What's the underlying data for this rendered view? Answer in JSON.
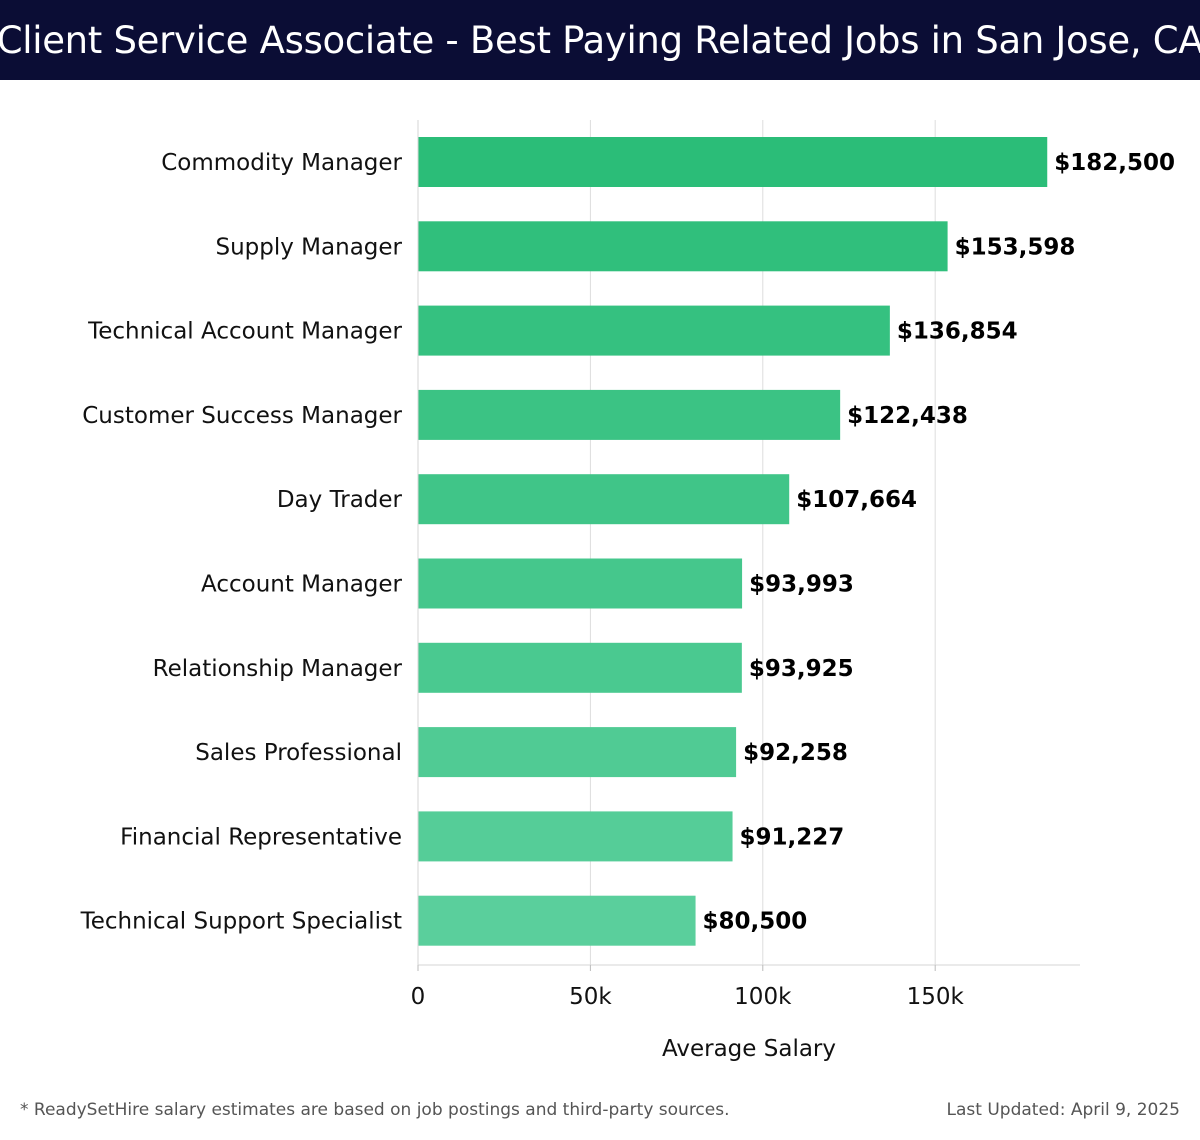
{
  "header": {
    "title": "Client Service Associate - Best Paying Related Jobs in San Jose, CA"
  },
  "chart_data": {
    "type": "bar",
    "orientation": "horizontal",
    "title": "Client Service Associate - Best Paying Related Jobs in San Jose, CA",
    "categories": [
      "Commodity Manager",
      "Supply Manager",
      "Technical Account Manager",
      "Customer Success Manager",
      "Day Trader",
      "Account Manager",
      "Relationship Manager",
      "Sales Professional",
      "Financial Representative",
      "Technical Support Specialist"
    ],
    "values": [
      182500,
      153598,
      136854,
      122438,
      107664,
      93993,
      93925,
      92258,
      91227,
      80500
    ],
    "value_labels": [
      "$182,500",
      "$153,598",
      "$136,854",
      "$122,438",
      "$107,664",
      "$93,993",
      "$93,925",
      "$92,258",
      "$91,227",
      "$80,500"
    ],
    "xlabel": "Average Salary",
    "ylabel": "",
    "xlim": [
      0,
      192000
    ],
    "xticks": [
      0,
      50000,
      100000,
      150000
    ],
    "xtick_labels": [
      "0",
      "50k",
      "100k",
      "150k"
    ],
    "grid": "vertical",
    "bar_color_start": "#2bbd78",
    "bar_color_end": "#5acf9c"
  },
  "footer": {
    "note": "* ReadySetHire salary estimates are based on job postings and third-party sources.",
    "updated": "Last Updated: April 9, 2025"
  }
}
